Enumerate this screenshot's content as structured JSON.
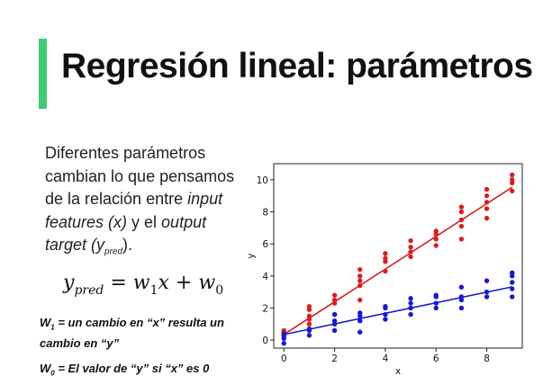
{
  "slide": {
    "title": "Regresión lineal: parámetros",
    "accent_color": "#3ecb73",
    "description": {
      "part1": "Diferentes parámetros cambian lo que pensamos de la relación entre ",
      "input_term": "input features (x)",
      "part2": " y el ",
      "output_term": "output target (y",
      "output_sub": "pred",
      "part3": ")."
    },
    "formula": {
      "lhs": "y",
      "lhs_sub": "pred",
      "rhs1": " = w",
      "w1_sub": "1",
      "rhs2": "x + w",
      "w0_sub": "0"
    },
    "note_w1": {
      "w": "W",
      "sub": "1",
      "text": " = un cambio en “x” resulta un cambio en “y”"
    },
    "note_w0": {
      "w": "W",
      "sub": "0",
      "text": " = El valor de “y” si “x” es 0"
    }
  },
  "chart_data": {
    "type": "scatter",
    "xlabel": "x",
    "ylabel": "y",
    "xlim": [
      -0.4,
      9.4
    ],
    "ylim": [
      -0.5,
      11.0
    ],
    "xticks": [
      0,
      2,
      4,
      6,
      8
    ],
    "yticks": [
      0,
      2,
      4,
      6,
      8,
      10
    ],
    "grid": false,
    "series": [
      {
        "color": "#d62020",
        "points": [
          [
            0,
            0.2
          ],
          [
            0,
            0.4
          ],
          [
            0,
            0.5
          ],
          [
            0,
            0.6
          ],
          [
            1,
            1.0
          ],
          [
            1,
            1.3
          ],
          [
            1,
            1.5
          ],
          [
            1,
            1.9
          ],
          [
            1,
            2.1
          ],
          [
            2,
            1.6
          ],
          [
            2,
            2.3
          ],
          [
            2,
            2.5
          ],
          [
            2,
            2.8
          ],
          [
            3,
            2.5
          ],
          [
            3,
            3.4
          ],
          [
            3,
            3.7
          ],
          [
            3,
            4.0
          ],
          [
            3,
            4.4
          ],
          [
            4,
            4.3
          ],
          [
            4,
            4.9
          ],
          [
            4,
            5.1
          ],
          [
            4,
            5.4
          ],
          [
            5,
            5.2
          ],
          [
            5,
            5.5
          ],
          [
            5,
            5.8
          ],
          [
            5,
            6.2
          ],
          [
            6,
            5.9
          ],
          [
            6,
            6.3
          ],
          [
            6,
            6.6
          ],
          [
            6,
            6.8
          ],
          [
            7,
            6.3
          ],
          [
            7,
            7.1
          ],
          [
            7,
            7.5
          ],
          [
            7,
            8.0
          ],
          [
            7,
            8.3
          ],
          [
            8,
            7.6
          ],
          [
            8,
            8.2
          ],
          [
            8,
            8.6
          ],
          [
            8,
            9.0
          ],
          [
            8,
            9.4
          ],
          [
            9,
            9.3
          ],
          [
            9,
            9.8
          ],
          [
            9,
            10.0
          ],
          [
            9,
            10.3
          ]
        ],
        "fit": {
          "w1": 1.02,
          "w0": 0.35
        }
      },
      {
        "color": "#1a1acc",
        "points": [
          [
            0,
            0.1
          ],
          [
            0,
            0.3
          ],
          [
            0,
            0.4
          ],
          [
            0,
            -0.2
          ],
          [
            1,
            0.3
          ],
          [
            1,
            0.6
          ],
          [
            1,
            0.7
          ],
          [
            2,
            0.6
          ],
          [
            2,
            1.0
          ],
          [
            2,
            1.2
          ],
          [
            2,
            1.6
          ],
          [
            3,
            0.5
          ],
          [
            3,
            1.2
          ],
          [
            3,
            1.5
          ],
          [
            3,
            1.7
          ],
          [
            4,
            1.3
          ],
          [
            4,
            1.6
          ],
          [
            4,
            2.0
          ],
          [
            4,
            2.1
          ],
          [
            5,
            1.6
          ],
          [
            5,
            2.0
          ],
          [
            5,
            2.3
          ],
          [
            5,
            2.6
          ],
          [
            6,
            2.0
          ],
          [
            6,
            2.3
          ],
          [
            6,
            2.7
          ],
          [
            6,
            2.8
          ],
          [
            7,
            2.0
          ],
          [
            7,
            2.5
          ],
          [
            7,
            2.7
          ],
          [
            7,
            3.3
          ],
          [
            8,
            2.7
          ],
          [
            8,
            3.0
          ],
          [
            8,
            3.7
          ],
          [
            9,
            2.7
          ],
          [
            9,
            3.2
          ],
          [
            9,
            3.6
          ],
          [
            9,
            4.0
          ],
          [
            9,
            4.2
          ]
        ],
        "fit": {
          "w1": 0.33,
          "w0": 0.35
        }
      }
    ]
  }
}
